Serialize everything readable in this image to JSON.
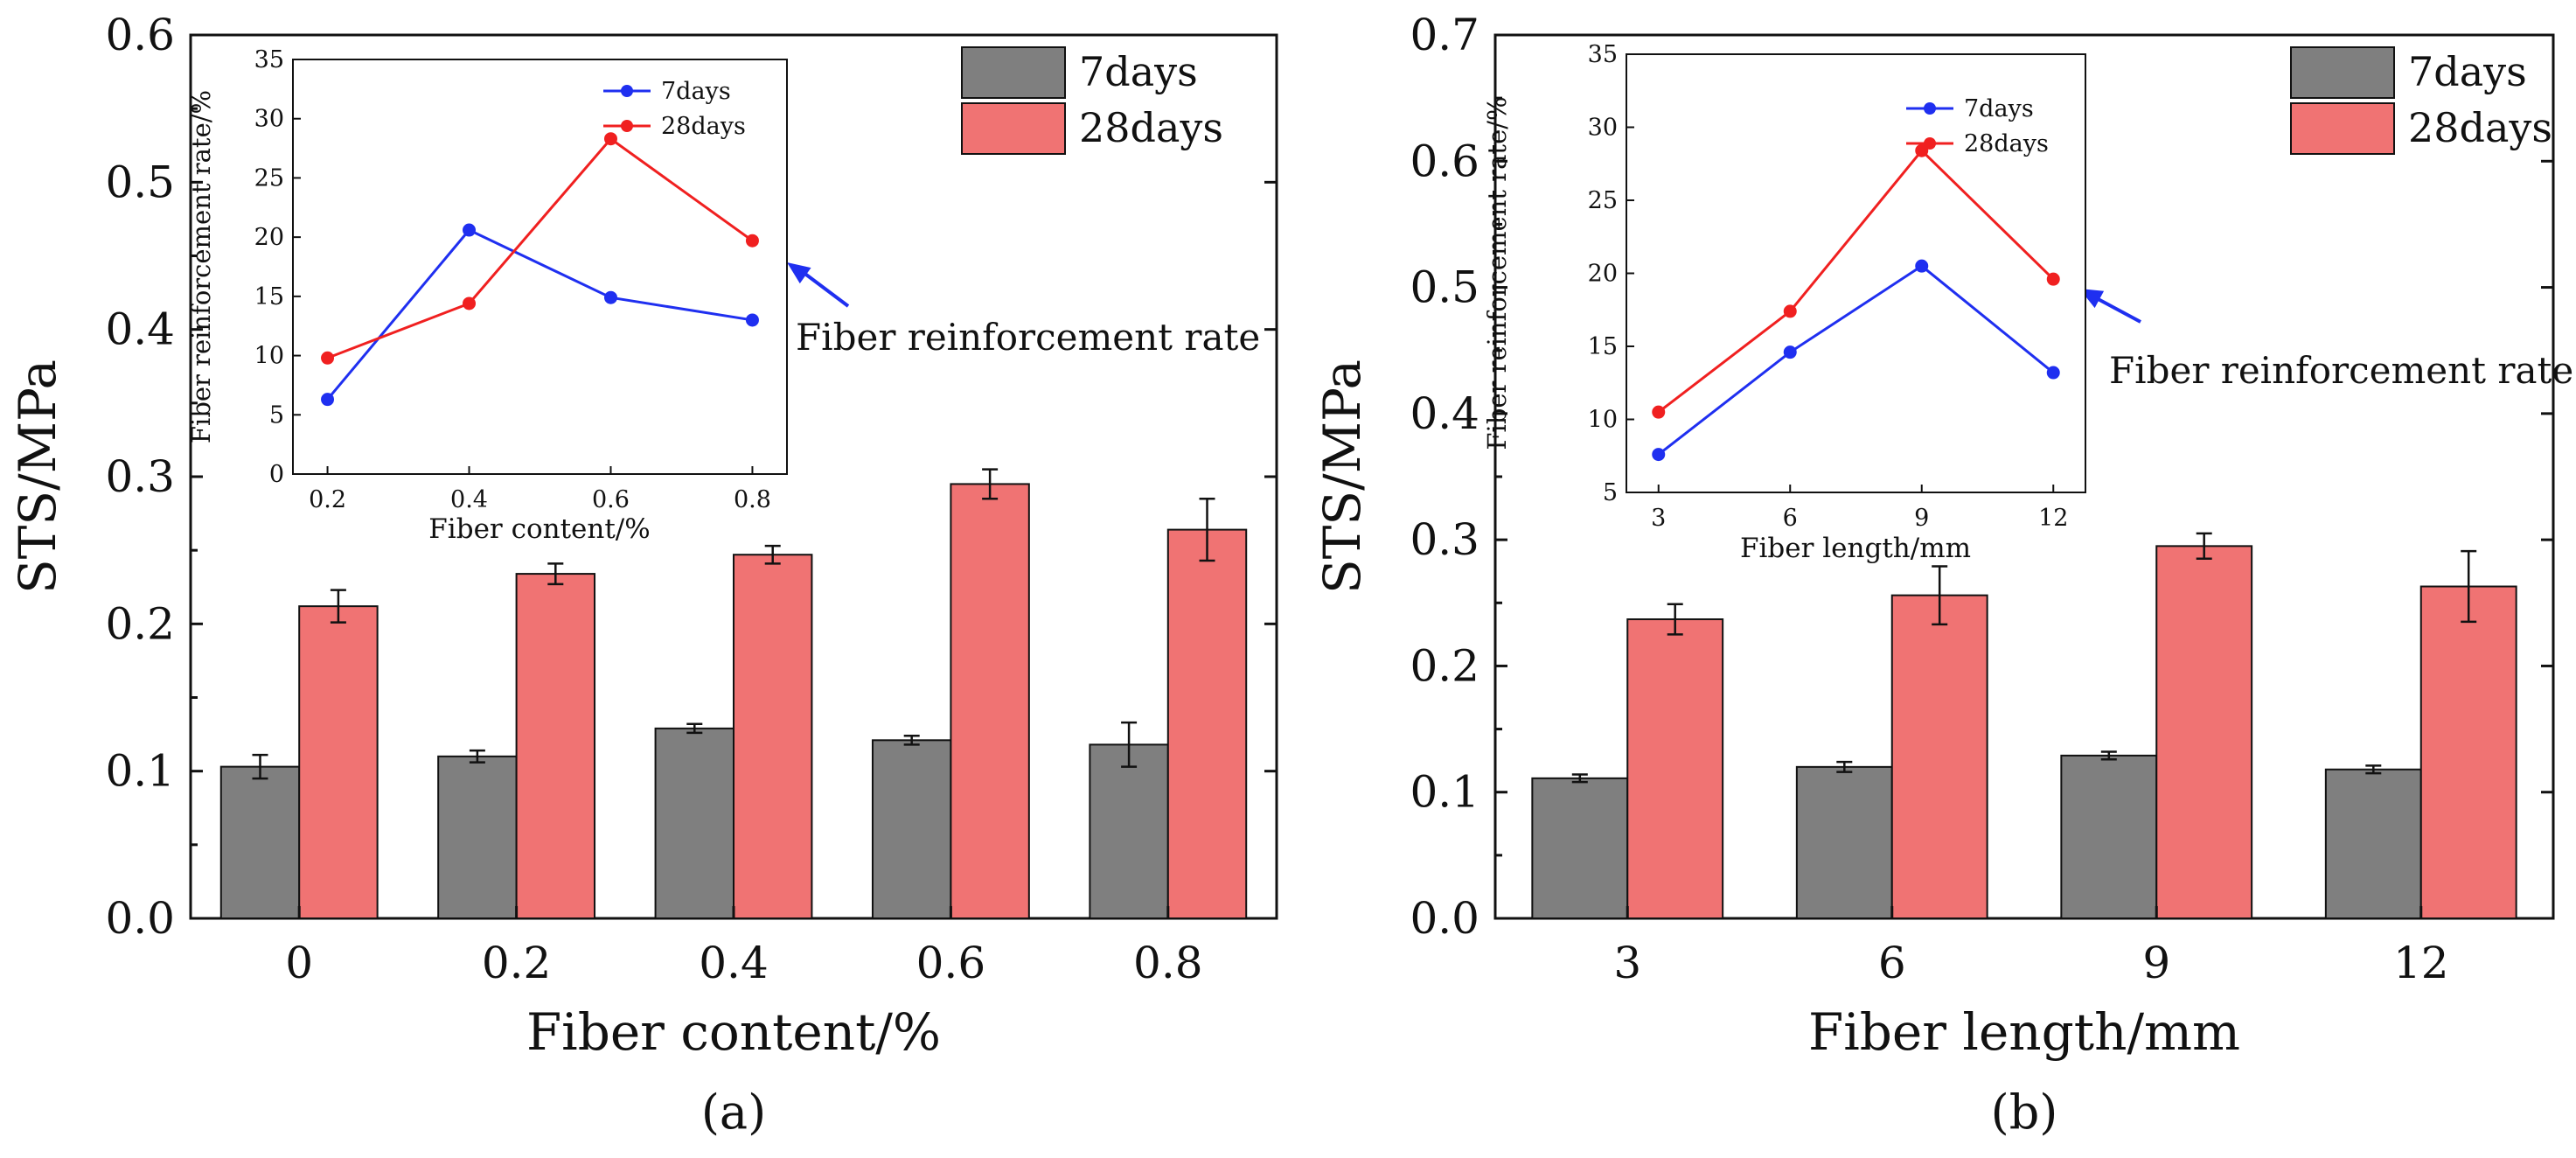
{
  "colors": {
    "bar_7days": "#7f7f7f",
    "bar_28days": "#f07373",
    "line_7days": "#1f2ff0",
    "line_28days": "#f02020",
    "annotation_arrow": "#1f2ff0"
  },
  "chart_data": [
    {
      "panel_label": "(a)",
      "type": "bar",
      "xlabel": "Fiber content/%",
      "ylabel": "STS/MPa",
      "ylim": [
        0.0,
        0.6
      ],
      "yticks": [
        "0.0",
        "0.1",
        "0.2",
        "0.3",
        "0.4",
        "0.5",
        "0.6"
      ],
      "categories": [
        "0",
        "0.2",
        "0.4",
        "0.6",
        "0.8"
      ],
      "series": [
        {
          "name": "7days",
          "values": [
            0.103,
            0.11,
            0.129,
            0.121,
            0.118
          ],
          "errors": [
            0.008,
            0.004,
            0.003,
            0.003,
            0.015
          ]
        },
        {
          "name": "28days",
          "values": [
            0.212,
            0.234,
            0.247,
            0.295,
            0.264
          ],
          "errors": [
            0.011,
            0.007,
            0.006,
            0.01,
            0.021
          ]
        }
      ],
      "legend_position": "top-right",
      "annotation": "Fiber reinforcement rate",
      "inset": {
        "type": "line",
        "xlabel": "Fiber content/%",
        "ylabel": "Fiber reinforcement rate/%",
        "x": [
          "0.2",
          "0.4",
          "0.6",
          "0.8"
        ],
        "ylim": [
          0,
          35
        ],
        "yticks": [
          "0",
          "5",
          "10",
          "15",
          "20",
          "25",
          "30",
          "35"
        ],
        "series": [
          {
            "name": "7days",
            "values": [
              6.3,
              20.6,
              14.9,
              13.0
            ]
          },
          {
            "name": "28days",
            "values": [
              9.8,
              14.4,
              28.3,
              19.7
            ]
          }
        ],
        "legend_position": "top-right"
      }
    },
    {
      "panel_label": "(b)",
      "type": "bar",
      "xlabel": "Fiber length/mm",
      "ylabel": "STS/MPa",
      "ylim": [
        0.0,
        0.7
      ],
      "yticks": [
        "0.0",
        "0.1",
        "0.2",
        "0.3",
        "0.4",
        "0.5",
        "0.6",
        "0.7"
      ],
      "categories": [
        "3",
        "6",
        "9",
        "12"
      ],
      "series": [
        {
          "name": "7days",
          "values": [
            0.111,
            0.12,
            0.129,
            0.118
          ],
          "errors": [
            0.003,
            0.004,
            0.003,
            0.003
          ]
        },
        {
          "name": "28days",
          "values": [
            0.237,
            0.256,
            0.295,
            0.263
          ],
          "errors": [
            0.012,
            0.023,
            0.01,
            0.028
          ]
        }
      ],
      "legend_position": "top-right",
      "annotation": "Fiber reinforcement rate",
      "inset": {
        "type": "line",
        "xlabel": "Fiber length/mm",
        "ylabel": "Fiber reinforcement rate/%",
        "x": [
          "3",
          "6",
          "9",
          "12"
        ],
        "ylim": [
          5,
          35
        ],
        "yticks": [
          "5",
          "10",
          "15",
          "20",
          "25",
          "30",
          "35"
        ],
        "series": [
          {
            "name": "7days",
            "values": [
              7.6,
              14.6,
              20.5,
              13.2
            ]
          },
          {
            "name": "28days",
            "values": [
              10.5,
              17.4,
              28.4,
              19.6
            ]
          }
        ],
        "legend_position": "top-right"
      }
    }
  ]
}
